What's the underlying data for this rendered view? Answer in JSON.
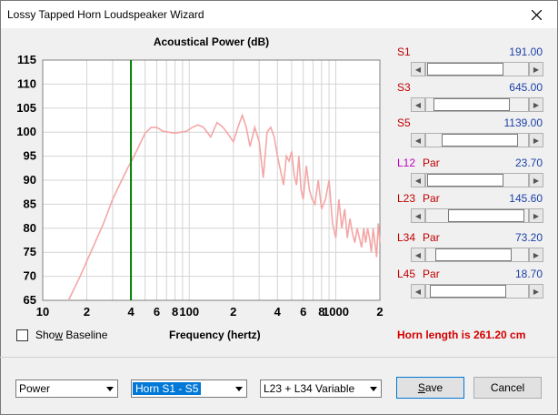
{
  "window": {
    "title": "Lossy Tapped Horn Loudspeaker Wizard",
    "close_icon": "close-icon"
  },
  "chart_data": {
    "type": "line",
    "title": "Acoustical Power (dB)",
    "xlabel": "Frequency (hertz)",
    "ylabel": "",
    "xscale": "log",
    "xlim": [
      10,
      2000
    ],
    "ylim": [
      65,
      115
    ],
    "ytick_labels": [
      "115",
      "110",
      "105",
      "100",
      "95",
      "90",
      "85",
      "80",
      "75",
      "70",
      "65"
    ],
    "xtick_labels": [
      "10",
      "2",
      "4",
      "6",
      "8",
      "100",
      "2",
      "4",
      "6",
      "8",
      "1000",
      "2"
    ],
    "marker_line": {
      "x": 40,
      "color": "#008000"
    },
    "grid": true,
    "series": [
      {
        "color": "#f4a6a6",
        "x": [
          15,
          18,
          22,
          26,
          30,
          34,
          38,
          42,
          46,
          50,
          55,
          60,
          66,
          72,
          80,
          88,
          96,
          105,
          115,
          125,
          140,
          155,
          170,
          185,
          200,
          215,
          230,
          245,
          260,
          280,
          300,
          320,
          340,
          360,
          380,
          400,
          420,
          440,
          460,
          480,
          500,
          520,
          540,
          560,
          580,
          600,
          630,
          660,
          690,
          720,
          760,
          800,
          850,
          900,
          950,
          1000,
          1050,
          1100,
          1150,
          1200,
          1250,
          1300,
          1350,
          1400,
          1450,
          1500,
          1550,
          1600,
          1650,
          1700,
          1750,
          1800,
          1850,
          1900,
          1950,
          2000
        ],
        "values": [
          65,
          70,
          76,
          81,
          86,
          89.5,
          92.5,
          95,
          97.5,
          99.8,
          101,
          101,
          100.2,
          100,
          99.8,
          100,
          100.2,
          101,
          101.5,
          101,
          99,
          102,
          101,
          99.5,
          98,
          101,
          103.5,
          101,
          97,
          101,
          98,
          90.5,
          100,
          101,
          99,
          95,
          92,
          89,
          95,
          94,
          96,
          91,
          89,
          95,
          88,
          86,
          93,
          88,
          86,
          85,
          90,
          84,
          86,
          90,
          81,
          78,
          86,
          80,
          84,
          78,
          82,
          79,
          77,
          80,
          78,
          76,
          80,
          77,
          80,
          78,
          75,
          80,
          77,
          74,
          81,
          77
        ]
      }
    ]
  },
  "sliders": [
    {
      "label": "S1",
      "par": "",
      "value": "191.00",
      "color": "#c00000",
      "fraction": 0.05
    },
    {
      "label": "S3",
      "par": "",
      "value": "645.00",
      "color": "#c00000",
      "fraction": 0.3
    },
    {
      "label": "S5",
      "par": "",
      "value": "1139.00",
      "color": "#c00000",
      "fraction": 0.6
    },
    {
      "label": "L12",
      "par": "Par",
      "value": "23.70",
      "color": "#c000c0",
      "fraction": 0.05
    },
    {
      "label": "L23",
      "par": "Par",
      "value": "145.60",
      "color": "#c00000",
      "fraction": 0.82
    },
    {
      "label": "L34",
      "par": "Par",
      "value": "73.20",
      "color": "#c00000",
      "fraction": 0.38
    },
    {
      "label": "L45",
      "par": "Par",
      "value": "18.70",
      "color": "#c00000",
      "fraction": 0.18
    }
  ],
  "show_baseline": {
    "label": "Show Baseline",
    "checked": false
  },
  "frequency_label": "Frequency (hertz)",
  "horn_length": "Horn length is 261.20 cm",
  "combos": {
    "mode": "Power",
    "horn": "Horn S1 - S5",
    "variable": "L23 + L34 Variable"
  },
  "buttons": {
    "save": "Save",
    "cancel": "Cancel"
  }
}
